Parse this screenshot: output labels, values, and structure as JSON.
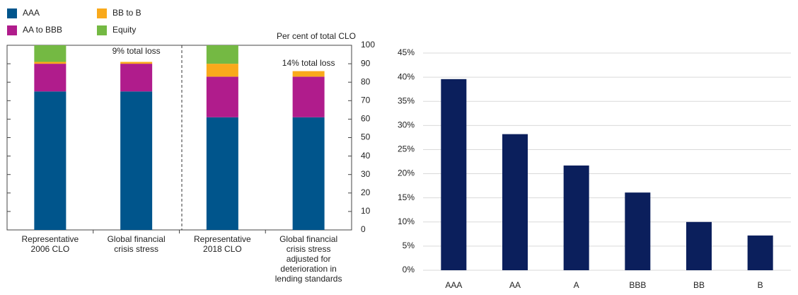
{
  "chart_data": [
    {
      "type": "bar",
      "stacked": true,
      "y_axis_side": "right",
      "y_label": "Per cent of total CLO",
      "categories": [
        "Representative 2006 CLO",
        "Global financial crisis stress",
        "Representative 2018 CLO",
        "Global financial crisis stress adjusted for deterioration in lending standards"
      ],
      "series": [
        {
          "name": "AAA",
          "color": "#00558c",
          "values": [
            75,
            75,
            61,
            61
          ]
        },
        {
          "name": "AA to BBB",
          "color": "#b01c8c",
          "values": [
            15,
            15,
            22,
            22
          ]
        },
        {
          "name": "BB to B",
          "color": "#f9a91b",
          "values": [
            1,
            1,
            7,
            3
          ]
        },
        {
          "name": "Equity",
          "color": "#74b943",
          "values": [
            9,
            0,
            10,
            0
          ]
        }
      ],
      "annotations": [
        "9% total loss",
        "14% total loss"
      ],
      "ylim": [
        0,
        100
      ],
      "yticks": [
        0,
        10,
        20,
        30,
        40,
        50,
        60,
        70,
        80,
        90,
        100
      ],
      "grid": false
    },
    {
      "type": "bar",
      "stacked": false,
      "y_axis_side": "left",
      "categories": [
        "AAA",
        "AA",
        "A",
        "BBB",
        "BB",
        "B"
      ],
      "values": [
        39.6,
        28.2,
        21.7,
        16.1,
        10.0,
        7.2
      ],
      "color": "#0b1f5c",
      "ylim": [
        0,
        45
      ],
      "yticks": [
        {
          "value": 0,
          "label": "0%"
        },
        {
          "value": 5,
          "label": "5%"
        },
        {
          "value": 10,
          "label": "10%"
        },
        {
          "value": 15,
          "label": "15%"
        },
        {
          "value": 20,
          "label": "20%"
        },
        {
          "value": 25,
          "label": "25%"
        },
        {
          "value": 30,
          "label": "30%"
        },
        {
          "value": 35,
          "label": "35%"
        },
        {
          "value": 40,
          "label": "40%"
        },
        {
          "value": 45,
          "label": "45%"
        }
      ],
      "grid": true
    }
  ]
}
